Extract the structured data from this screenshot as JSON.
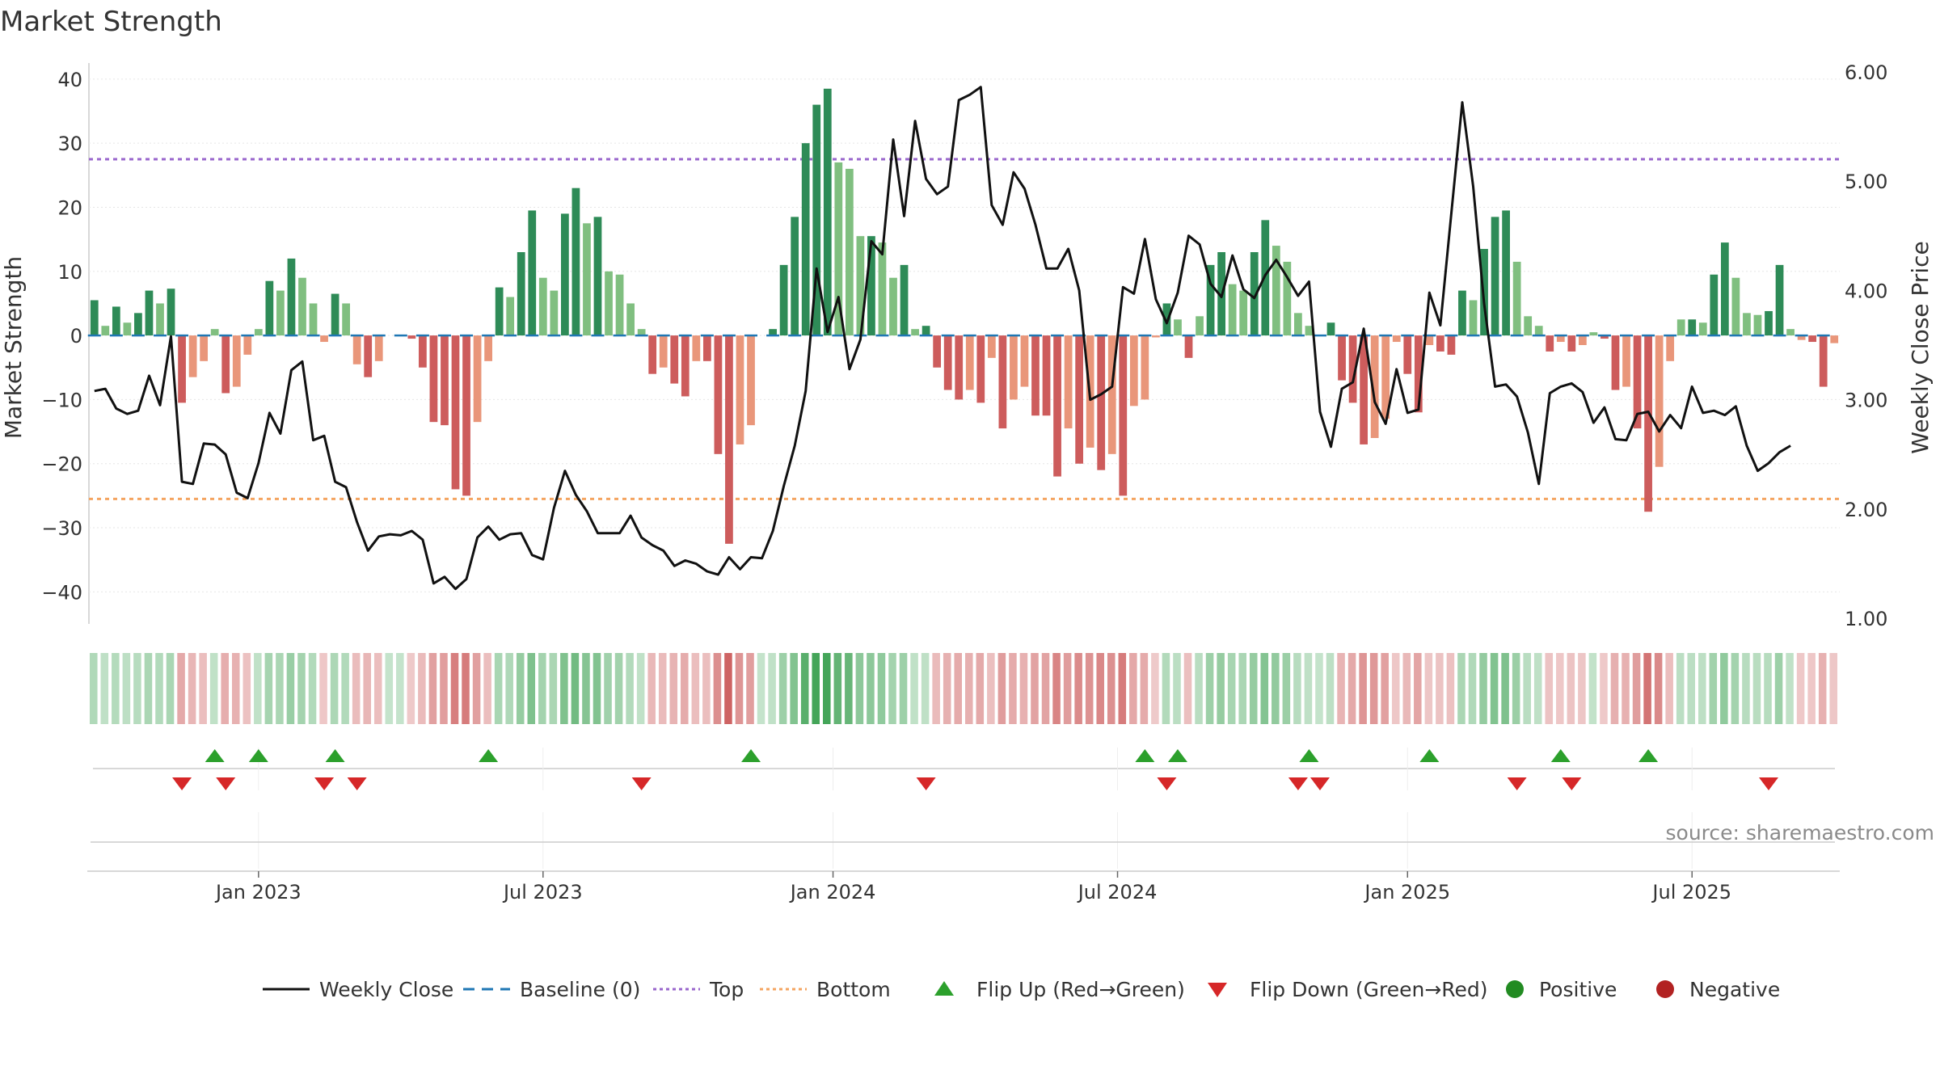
{
  "chart_data": {
    "type": "bar",
    "title": "Market Strength",
    "ylabel_left": "Market Strength",
    "ylabel_right": "Weekly Close Price",
    "ylim_left": [
      -45,
      42
    ],
    "ylim_right": [
      0.95,
      6.05
    ],
    "y_ticks_left": [
      "40",
      "30",
      "20",
      "10",
      "0",
      "−10",
      "−20",
      "−30",
      "−40"
    ],
    "y_ticks_right": [
      "6.00",
      "5.00",
      "4.00",
      "3.00",
      "2.00",
      "1.00"
    ],
    "x_ticks": [
      "Jan 2023",
      "Jul 2023",
      "Jan 2024",
      "Jul 2024",
      "Jan 2025",
      "Jul 2025"
    ],
    "x_tick_index": [
      15,
      41,
      67.5,
      93.5,
      120,
      146
    ],
    "top_level": 27.5,
    "bottom_level": -25.5,
    "baseline": 0,
    "strength": [
      5.5,
      1.5,
      4.5,
      2,
      3.5,
      7,
      5,
      7.3,
      -10.5,
      -6.5,
      -4,
      1,
      -9,
      -8,
      -3,
      1,
      8.5,
      7,
      12,
      9,
      5,
      -1,
      6.5,
      5,
      -4.5,
      -6.5,
      -4,
      0,
      0,
      -0.5,
      -5,
      -13.5,
      -14,
      -24,
      -25,
      -13.5,
      -4,
      7.5,
      6,
      13,
      19.5,
      9,
      7,
      19,
      23,
      17.5,
      18.5,
      10,
      9.5,
      5,
      1,
      -6,
      -5,
      -7.5,
      -9.5,
      -4,
      -4,
      -18.5,
      -32.5,
      -17,
      -14,
      0,
      1,
      11,
      18.5,
      30,
      36,
      38.5,
      27,
      26,
      15.5,
      15.5,
      14.5,
      9,
      11,
      1,
      1.5,
      -5,
      -8.5,
      -10,
      -8.5,
      -10.5,
      -3.5,
      -14.5,
      -10,
      -8,
      -12.5,
      -12.5,
      -22,
      -14.5,
      -20,
      -17.5,
      -21,
      -18.5,
      -25,
      -11,
      -10,
      -0.3,
      5,
      2.5,
      -3.5,
      3,
      11,
      13,
      8,
      7,
      13,
      18,
      14,
      11.5,
      3.5,
      1.5,
      0,
      2,
      -7,
      -10.5,
      -17,
      -16,
      -13,
      -1,
      -6,
      -12,
      -1.5,
      -2.5,
      -3,
      7,
      5.5,
      13.5,
      18.5,
      19.5,
      11.5,
      3,
      1.5,
      -2.5,
      -1,
      -2.5,
      -1.5,
      0.5,
      -0.5,
      -8.5,
      -8,
      -14.5,
      -27.5,
      -20.5,
      -4,
      2.5,
      2.5,
      2,
      9.5,
      14.5,
      9,
      3.5,
      3.2,
      3.8,
      11,
      1,
      -0.7,
      -1,
      -8,
      -1.2
    ],
    "weekly_close": [
      3.08,
      3.1,
      2.92,
      2.87,
      2.9,
      3.22,
      2.95,
      3.58,
      2.25,
      2.23,
      2.6,
      2.59,
      2.5,
      2.15,
      2.1,
      2.42,
      2.88,
      2.69,
      3.27,
      3.35,
      2.63,
      2.67,
      2.25,
      2.2,
      1.88,
      1.62,
      1.75,
      1.77,
      1.76,
      1.8,
      1.72,
      1.32,
      1.38,
      1.27,
      1.36,
      1.74,
      1.84,
      1.72,
      1.77,
      1.78,
      1.58,
      1.54,
      2.01,
      2.35,
      2.13,
      1.98,
      1.78,
      1.78,
      1.78,
      1.94,
      1.74,
      1.67,
      1.62,
      1.48,
      1.53,
      1.5,
      1.43,
      1.4,
      1.56,
      1.45,
      1.56,
      1.55,
      1.8,
      2.21,
      2.58,
      3.08,
      4.2,
      3.62,
      3.94,
      3.28,
      3.55,
      4.45,
      4.33,
      5.38,
      4.68,
      5.55,
      5.02,
      4.88,
      4.95,
      5.74,
      5.79,
      5.86,
      4.78,
      4.6,
      5.08,
      4.93,
      4.6,
      4.2,
      4.2,
      4.38,
      4.0,
      3.0,
      3.05,
      3.12,
      4.03,
      3.97,
      4.47,
      3.92,
      3.7,
      3.98,
      4.5,
      4.42,
      4.06,
      3.94,
      4.32,
      4.01,
      3.93,
      4.14,
      4.28,
      4.12,
      3.95,
      4.08,
      2.89,
      2.57,
      3.1,
      3.16,
      3.65,
      2.98,
      2.78,
      3.28,
      2.88,
      2.91,
      3.98,
      3.68,
      4.7,
      5.72,
      4.95,
      3.88,
      3.12,
      3.14,
      3.03,
      2.7,
      2.23,
      3.06,
      3.12,
      3.15,
      3.07,
      2.79,
      2.93,
      2.64,
      2.63,
      2.87,
      2.89,
      2.71,
      2.86,
      2.74,
      3.12,
      2.88,
      2.9,
      2.86,
      2.94,
      2.58,
      2.35,
      2.42,
      2.52,
      2.58
    ],
    "flip_up_index": [
      11,
      15,
      22,
      36,
      60,
      96,
      99,
      111,
      122,
      134,
      142
    ],
    "flip_down_index": [
      8,
      12,
      21,
      24,
      50,
      76,
      98,
      110,
      112,
      130,
      135,
      153
    ],
    "legend": [
      "Weekly Close",
      "Baseline (0)",
      "Top",
      "Bottom",
      "Flip Up (Red→Green)",
      "Flip Down (Green→Red)",
      "Positive",
      "Negative"
    ],
    "legend_position": "bottom",
    "source": "source: sharemaestro.com"
  },
  "colors": {
    "pos_strong": "#2e8b57",
    "pos_weak": "#80bf80",
    "neg_strong": "#cd5c5c",
    "neg_weak": "#e9967a",
    "line": "#111111",
    "baseline": "#1f77b4",
    "top": "#9966cc",
    "bottom": "#f4a460",
    "flip_up": "#2ca02c",
    "flip_down": "#d62728",
    "positive_dot": "#228b22",
    "negative_dot": "#b22222"
  }
}
